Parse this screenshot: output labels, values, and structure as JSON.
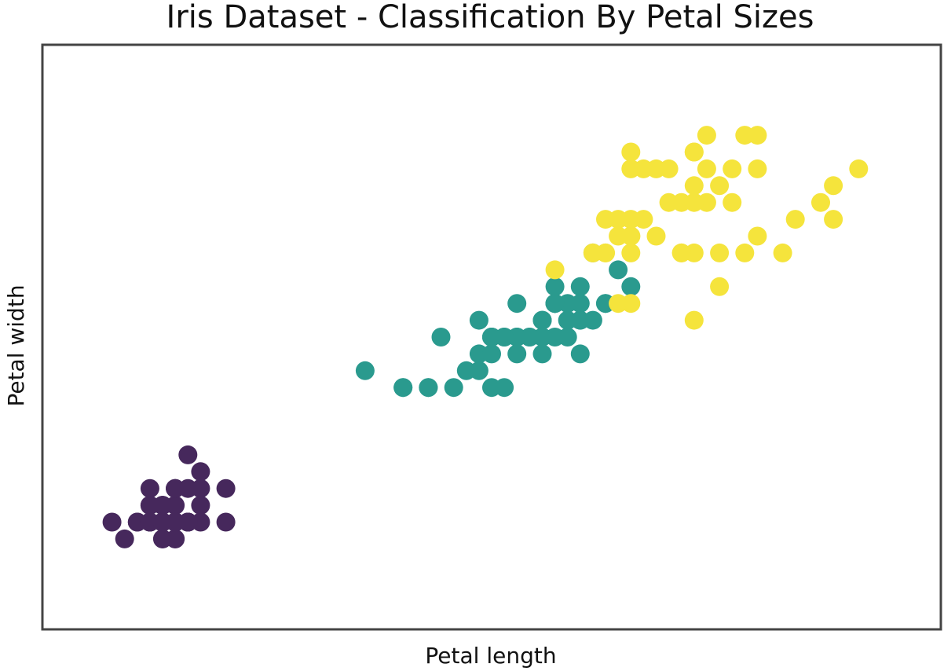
{
  "chart_data": {
    "type": "scatter",
    "title": "Iris Dataset - Classification By Petal Sizes",
    "xlabel": "Petal length",
    "ylabel": "Petal width",
    "xlim": [
      0.5,
      7.5
    ],
    "ylim": [
      -0.4,
      3.0
    ],
    "grid": false,
    "legend": "none",
    "x_ticks_visible": false,
    "y_ticks_visible": false,
    "series": [
      {
        "color": "#46285c",
        "points": [
          [
            1.4,
            0.2
          ],
          [
            1.4,
            0.2
          ],
          [
            1.3,
            0.2
          ],
          [
            1.5,
            0.2
          ],
          [
            1.4,
            0.2
          ],
          [
            1.7,
            0.4
          ],
          [
            1.4,
            0.3
          ],
          [
            1.5,
            0.2
          ],
          [
            1.4,
            0.2
          ],
          [
            1.5,
            0.1
          ],
          [
            1.5,
            0.2
          ],
          [
            1.6,
            0.2
          ],
          [
            1.4,
            0.1
          ],
          [
            1.1,
            0.1
          ],
          [
            1.2,
            0.2
          ],
          [
            1.5,
            0.4
          ],
          [
            1.3,
            0.4
          ],
          [
            1.4,
            0.3
          ],
          [
            1.7,
            0.3
          ],
          [
            1.5,
            0.3
          ],
          [
            1.7,
            0.2
          ],
          [
            1.5,
            0.4
          ],
          [
            1.0,
            0.2
          ],
          [
            1.7,
            0.5
          ],
          [
            1.9,
            0.2
          ],
          [
            1.6,
            0.2
          ],
          [
            1.6,
            0.4
          ],
          [
            1.5,
            0.2
          ],
          [
            1.4,
            0.2
          ],
          [
            1.6,
            0.2
          ],
          [
            1.6,
            0.2
          ],
          [
            1.5,
            0.4
          ],
          [
            1.5,
            0.1
          ],
          [
            1.4,
            0.2
          ],
          [
            1.5,
            0.2
          ],
          [
            1.2,
            0.2
          ],
          [
            1.3,
            0.2
          ],
          [
            1.4,
            0.1
          ],
          [
            1.3,
            0.2
          ],
          [
            1.5,
            0.2
          ],
          [
            1.3,
            0.3
          ],
          [
            1.3,
            0.3
          ],
          [
            1.3,
            0.2
          ],
          [
            1.6,
            0.6
          ],
          [
            1.9,
            0.4
          ],
          [
            1.4,
            0.3
          ],
          [
            1.6,
            0.2
          ],
          [
            1.4,
            0.2
          ],
          [
            1.5,
            0.2
          ],
          [
            1.4,
            0.2
          ]
        ]
      },
      {
        "color": "#2a9a8e",
        "points": [
          [
            4.7,
            1.4
          ],
          [
            4.5,
            1.5
          ],
          [
            4.9,
            1.5
          ],
          [
            4.0,
            1.3
          ],
          [
            4.6,
            1.5
          ],
          [
            4.5,
            1.3
          ],
          [
            4.7,
            1.6
          ],
          [
            3.3,
            1.0
          ],
          [
            4.6,
            1.3
          ],
          [
            3.9,
            1.4
          ],
          [
            3.5,
            1.0
          ],
          [
            4.2,
            1.5
          ],
          [
            4.0,
            1.0
          ],
          [
            4.7,
            1.4
          ],
          [
            3.6,
            1.3
          ],
          [
            4.4,
            1.4
          ],
          [
            4.5,
            1.5
          ],
          [
            4.1,
            1.0
          ],
          [
            4.5,
            1.5
          ],
          [
            3.9,
            1.1
          ],
          [
            4.8,
            1.8
          ],
          [
            4.0,
            1.3
          ],
          [
            4.9,
            1.5
          ],
          [
            4.7,
            1.2
          ],
          [
            4.3,
            1.3
          ],
          [
            4.4,
            1.4
          ],
          [
            4.8,
            1.4
          ],
          [
            5.0,
            1.7
          ],
          [
            4.5,
            1.5
          ],
          [
            3.5,
            1.0
          ],
          [
            3.8,
            1.1
          ],
          [
            3.7,
            1.0
          ],
          [
            3.9,
            1.2
          ],
          [
            5.1,
            1.6
          ],
          [
            4.5,
            1.5
          ],
          [
            4.5,
            1.6
          ],
          [
            4.7,
            1.5
          ],
          [
            4.4,
            1.3
          ],
          [
            4.1,
            1.3
          ],
          [
            4.0,
            1.3
          ],
          [
            4.4,
            1.2
          ],
          [
            4.6,
            1.4
          ],
          [
            4.0,
            1.2
          ],
          [
            3.3,
            1.0
          ],
          [
            4.2,
            1.3
          ],
          [
            4.2,
            1.2
          ],
          [
            4.2,
            1.3
          ],
          [
            4.3,
            1.3
          ],
          [
            3.0,
            1.1
          ],
          [
            4.1,
            1.3
          ]
        ]
      },
      {
        "color": "#f5e43c",
        "points": [
          [
            6.0,
            2.5
          ],
          [
            5.1,
            1.9
          ],
          [
            5.9,
            2.1
          ],
          [
            5.6,
            1.8
          ],
          [
            5.8,
            2.2
          ],
          [
            6.6,
            2.1
          ],
          [
            4.5,
            1.7
          ],
          [
            6.3,
            1.8
          ],
          [
            5.8,
            1.8
          ],
          [
            6.1,
            2.5
          ],
          [
            5.1,
            2.0
          ],
          [
            5.3,
            1.9
          ],
          [
            5.5,
            2.1
          ],
          [
            5.0,
            2.0
          ],
          [
            5.1,
            2.4
          ],
          [
            5.3,
            2.3
          ],
          [
            5.5,
            1.8
          ],
          [
            6.7,
            2.2
          ],
          [
            6.9,
            2.3
          ],
          [
            5.0,
            1.5
          ],
          [
            5.7,
            2.3
          ],
          [
            4.9,
            2.0
          ],
          [
            6.7,
            2.0
          ],
          [
            4.9,
            1.8
          ],
          [
            5.7,
            2.1
          ],
          [
            6.0,
            1.8
          ],
          [
            4.8,
            1.8
          ],
          [
            4.9,
            1.8
          ],
          [
            5.6,
            2.1
          ],
          [
            5.8,
            1.6
          ],
          [
            6.1,
            1.9
          ],
          [
            6.4,
            2.0
          ],
          [
            5.6,
            2.2
          ],
          [
            5.1,
            1.5
          ],
          [
            5.6,
            1.4
          ],
          [
            6.1,
            2.3
          ],
          [
            5.6,
            2.4
          ],
          [
            5.5,
            1.8
          ],
          [
            4.8,
            1.8
          ],
          [
            5.4,
            2.1
          ],
          [
            5.6,
            2.4
          ],
          [
            5.1,
            2.3
          ],
          [
            5.1,
            1.9
          ],
          [
            5.9,
            2.3
          ],
          [
            5.7,
            2.5
          ],
          [
            5.2,
            2.3
          ],
          [
            5.0,
            1.9
          ],
          [
            5.2,
            2.0
          ],
          [
            5.4,
            2.3
          ],
          [
            5.1,
            1.8
          ]
        ]
      }
    ]
  }
}
